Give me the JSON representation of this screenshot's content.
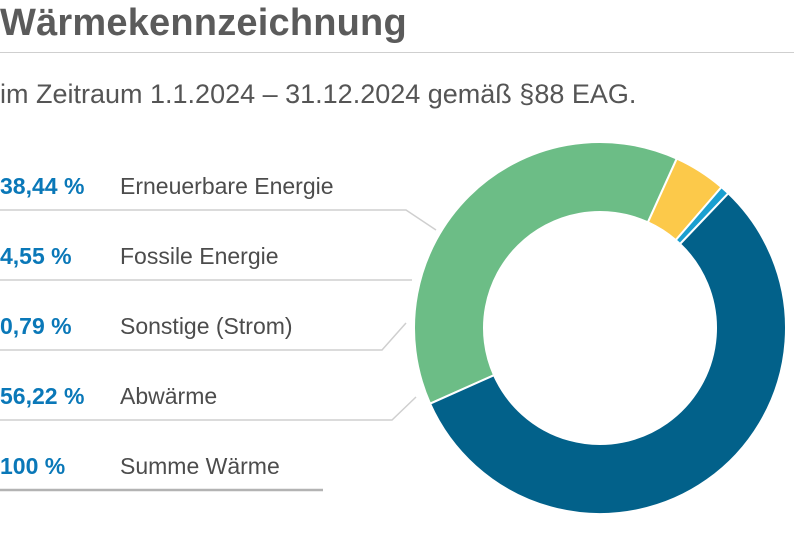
{
  "header": {
    "title": "Wärmekennzeichnung",
    "subtitle": "im Zeitraum 1.1.2024 – 31.12.2024 gemäß §88 EAG."
  },
  "legend": [
    {
      "percent_label": "38,44 %",
      "name": "Erneuerbare Energie"
    },
    {
      "percent_label": "4,55 %",
      "name": "Fossile Energie"
    },
    {
      "percent_label": "0,79 %",
      "name": "Sonstige (Strom)"
    },
    {
      "percent_label": "56,22 %",
      "name": "Abwärme"
    },
    {
      "percent_label": "100 %",
      "name": "Summe Wärme"
    }
  ],
  "chart_data": {
    "type": "pie",
    "variant": "donut",
    "categories": [
      "Erneuerbare Energie",
      "Fossile Energie",
      "Sonstige (Strom)",
      "Abwärme"
    ],
    "values": [
      38.44,
      4.55,
      0.79,
      56.22
    ],
    "total_label": "Summe Wärme",
    "total_value": 100,
    "colors": [
      "#6cbd86",
      "#fcc94a",
      "#1a9fd0",
      "#02618a"
    ],
    "legend_position": "left"
  },
  "colors": {
    "title": "#5b5b5b",
    "percent_text": "#0a78b8",
    "label_text": "#4c4c4c",
    "rules": "#cfcfcf"
  }
}
